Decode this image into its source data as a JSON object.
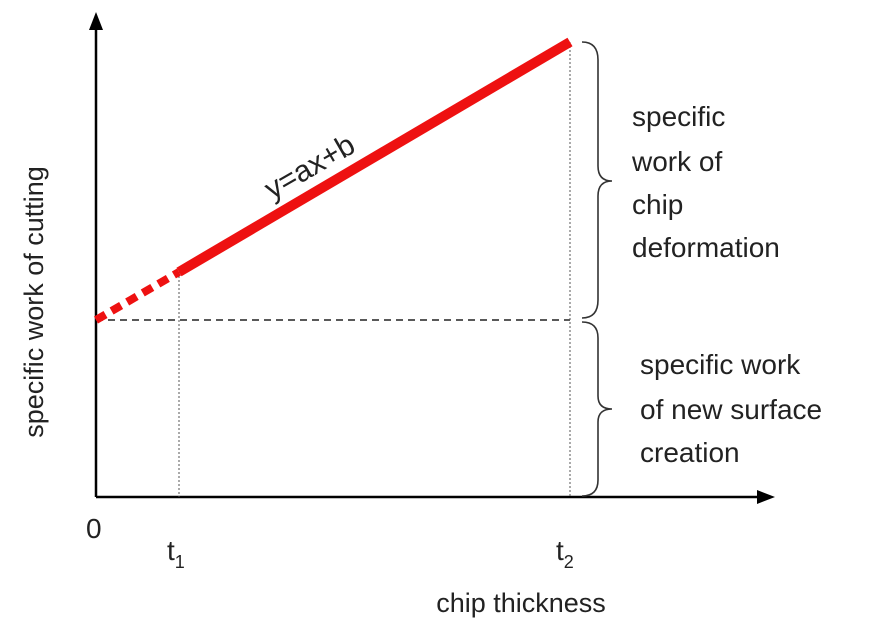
{
  "diagram": {
    "y_axis_label": "specific work of cutting",
    "x_axis_label": "chip thickness",
    "origin_label": "0",
    "tick_t1": {
      "base": "t",
      "sub": "1"
    },
    "tick_t2": {
      "base": "t",
      "sub": "2"
    },
    "equation": "y=ax+b",
    "brace_upper_lines": [
      "specific",
      "work of",
      "chip",
      "deformation"
    ],
    "brace_lower_lines": [
      "specific work",
      "of new surface",
      "creation"
    ],
    "colors": {
      "line": "#ee1111",
      "axis": "#000000",
      "text": "#222222"
    }
  }
}
